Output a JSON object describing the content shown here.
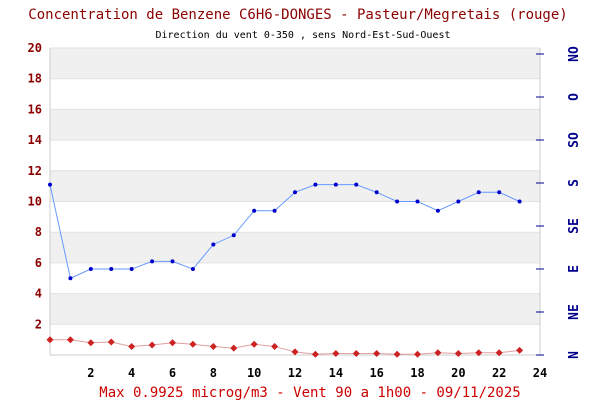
{
  "chart_data": {
    "type": "line",
    "title": "Concentration de Benzene C6H6-DONGES - Pasteur/Megretais (rouge)",
    "subtitle": "Direction du vent 0-350 , sens Nord-Est-Sud-Ouest",
    "footer": "Max 0.9925 microg/m3 - Vent 90  a 1h00 - 09/11/2025",
    "x_ticks": [
      "2",
      "4",
      "6",
      "8",
      "10",
      "12",
      "14",
      "16",
      "18",
      "20",
      "22",
      "24"
    ],
    "y_ticks": [
      "2",
      "4",
      "6",
      "8",
      "10",
      "12",
      "14",
      "16",
      "18",
      "20"
    ],
    "right_ticks": [
      "N",
      "NE",
      "E",
      "SE",
      "S",
      "SO",
      "O",
      "NO"
    ],
    "xlim": [
      0,
      24
    ],
    "ylim": [
      0,
      20
    ],
    "grid": "horizontal-bands",
    "colors": {
      "benzene": "#cc2222",
      "wind": "#0000cc",
      "wind_line": "#6699ff"
    },
    "series": [
      {
        "key": "benzene",
        "x": [
          0,
          1,
          2,
          3,
          4,
          5,
          6,
          7,
          8,
          9,
          10,
          11,
          12,
          13,
          14,
          15,
          16,
          17,
          18,
          19,
          20,
          21,
          22,
          23
        ],
        "values": [
          0.99,
          0.99,
          0.8,
          0.85,
          0.55,
          0.65,
          0.8,
          0.7,
          0.55,
          0.45,
          0.7,
          0.55,
          0.2,
          0.05,
          0.1,
          0.1,
          0.1,
          0.05,
          0.05,
          0.15,
          0.1,
          0.15,
          0.15,
          0.3
        ]
      },
      {
        "key": "wind",
        "x": [
          0,
          1,
          2,
          3,
          4,
          5,
          6,
          7,
          8,
          9,
          10,
          11,
          12,
          13,
          14,
          15,
          16,
          17,
          18,
          19,
          20,
          21,
          22,
          23
        ],
        "values": [
          11.1,
          5.0,
          5.6,
          5.6,
          5.6,
          6.1,
          6.1,
          5.6,
          7.2,
          7.8,
          9.4,
          9.4,
          10.6,
          11.1,
          11.1,
          11.1,
          10.6,
          10.0,
          10.0,
          9.4,
          10.0,
          10.6,
          10.6,
          10.0
        ]
      }
    ]
  }
}
